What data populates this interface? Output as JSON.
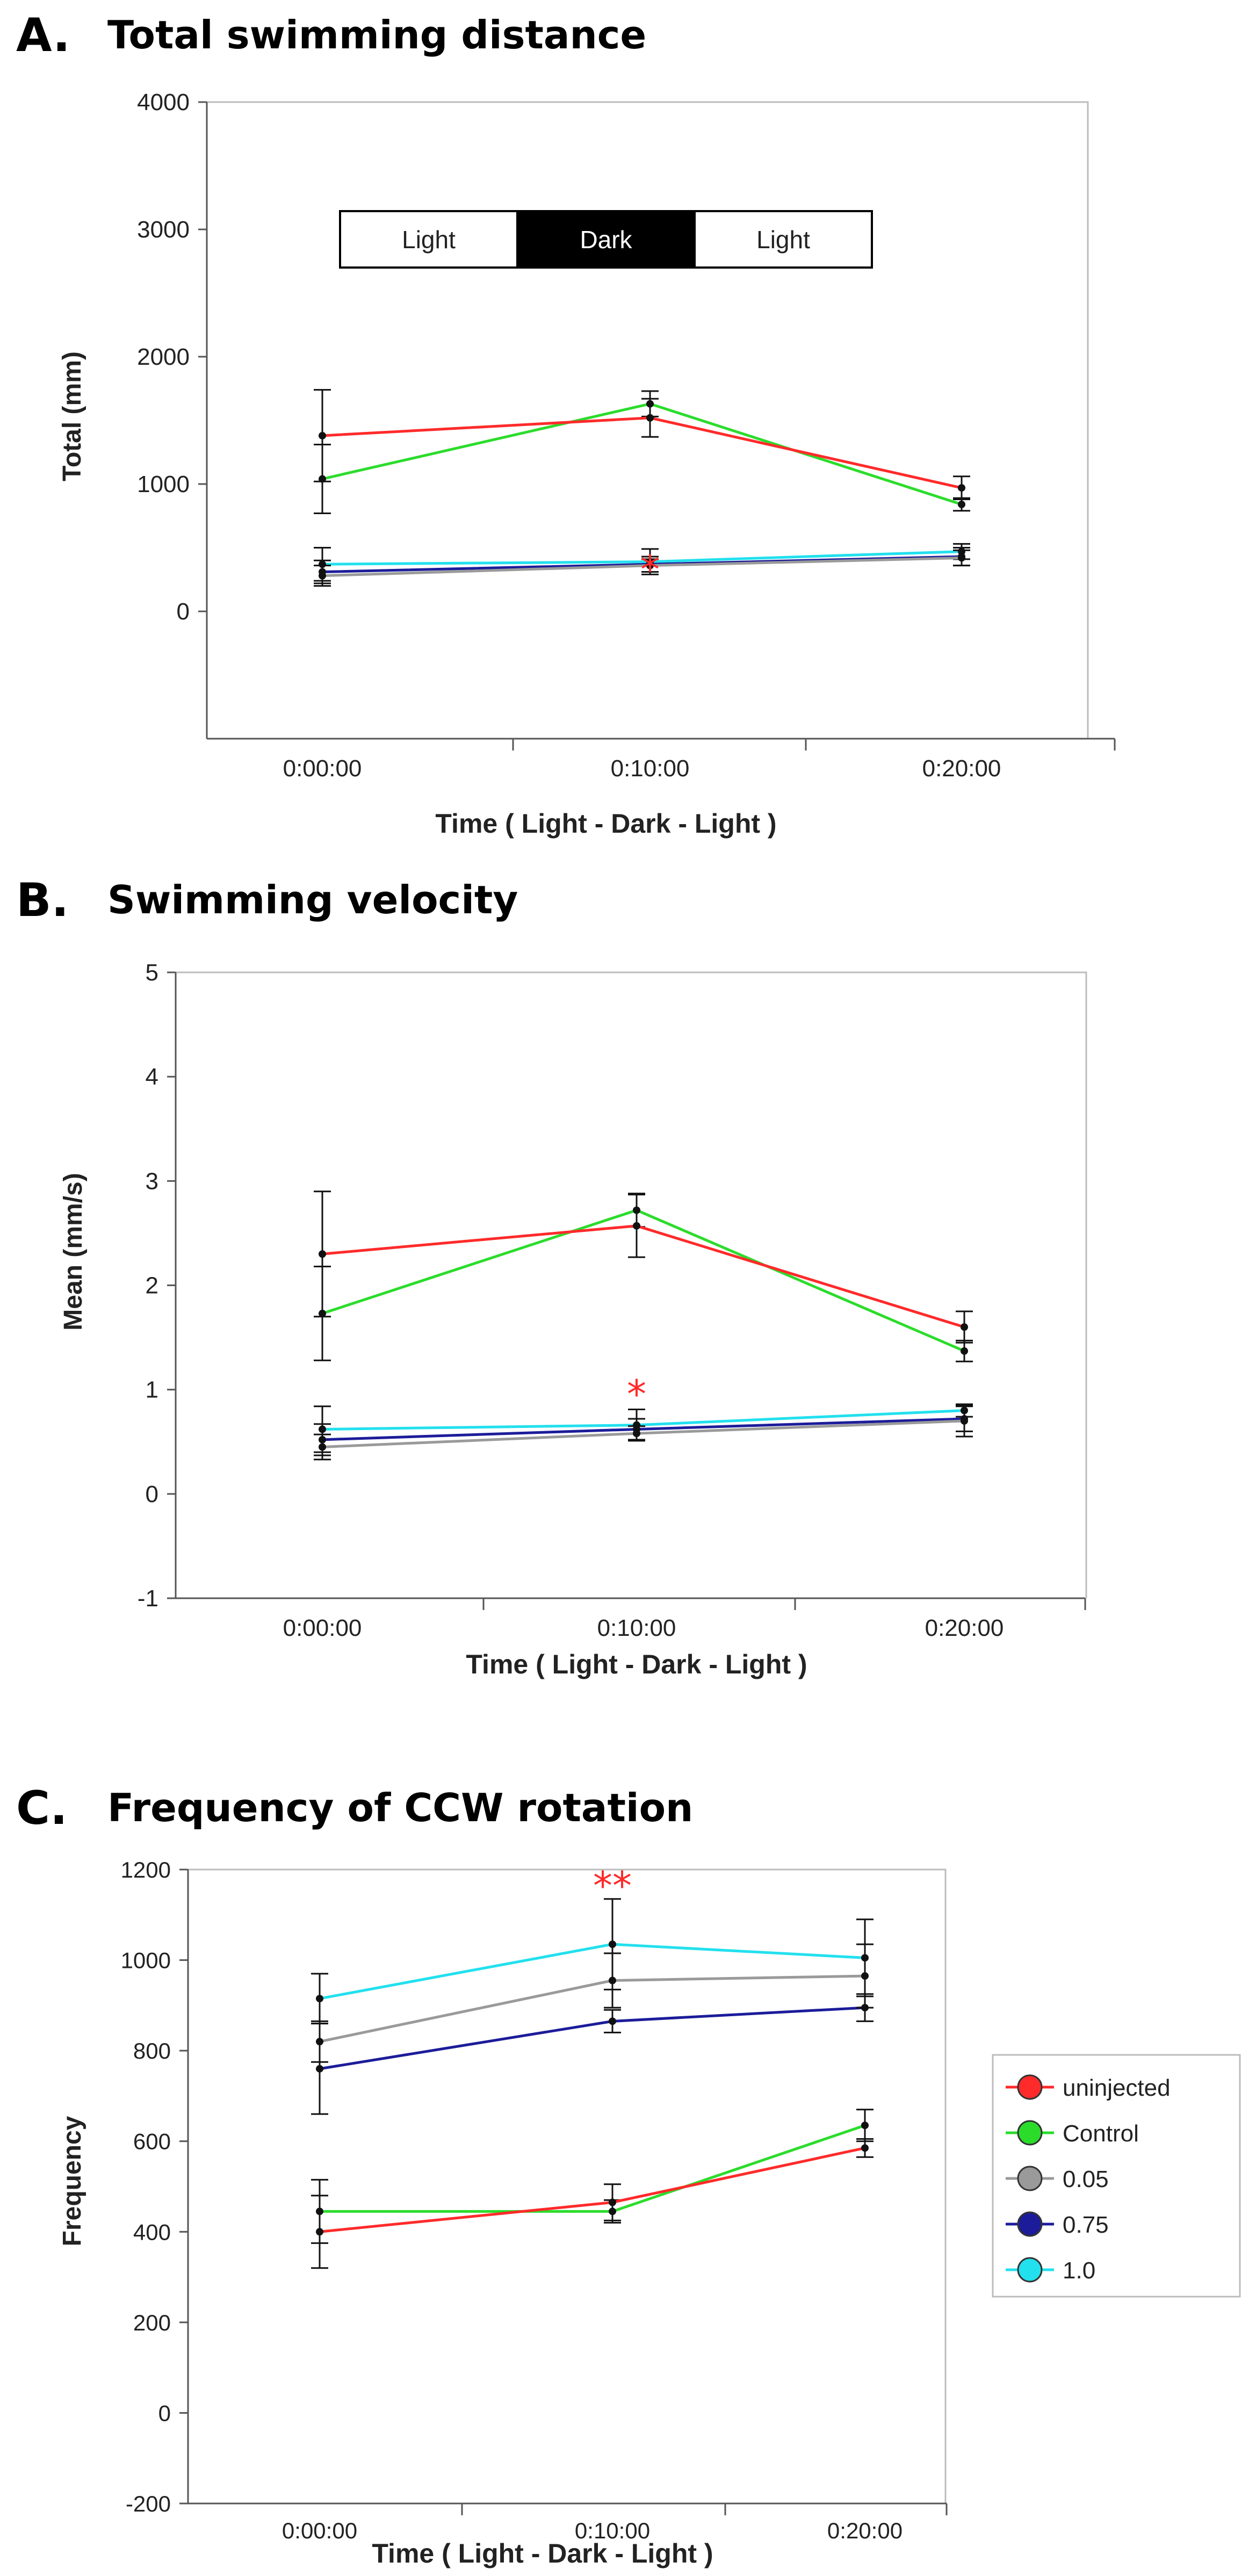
{
  "figure": {
    "panels": [
      {
        "letter": "A.",
        "title": "Total swimming distance"
      },
      {
        "letter": "B.",
        "title": "Swimming velocity"
      },
      {
        "letter": "C.",
        "title": "Frequency of CCW rotation"
      }
    ]
  },
  "legend": {
    "items": [
      {
        "label": "uninjected",
        "color": "#ff2a2a"
      },
      {
        "label": "Control",
        "color": "#2bdc2b"
      },
      {
        "label": "0.05",
        "color": "#9a9a9a"
      },
      {
        "label": "0.75",
        "color": "#1c1c9a"
      },
      {
        "label": "1.0",
        "color": "#22e0ee"
      }
    ]
  },
  "chart_data": [
    {
      "type": "line",
      "title": "Total swimming distance",
      "xlabel": "Time ( Light - Dark - Light )",
      "ylabel": "Total (mm)",
      "categories": [
        "0:00:00",
        "0:10:00",
        "0:20:00"
      ],
      "ylim": [
        -1000,
        4000
      ],
      "yticks": [
        0,
        1000,
        2000,
        3000,
        4000
      ],
      "annotation": "*",
      "light_dark_bar": [
        "Light",
        "Dark",
        "Light"
      ],
      "series": [
        {
          "name": "uninjected",
          "values": [
            1380,
            1520,
            970
          ],
          "errors": [
            360,
            150,
            90
          ]
        },
        {
          "name": "Control",
          "values": [
            1040,
            1630,
            840
          ],
          "errors": [
            270,
            100,
            50
          ]
        },
        {
          "name": "0.05",
          "values": [
            280,
            360,
            420
          ],
          "errors": [
            80,
            50,
            60
          ]
        },
        {
          "name": "0.75",
          "values": [
            310,
            370,
            430
          ],
          "errors": [
            90,
            60,
            70
          ]
        },
        {
          "name": "1.0",
          "values": [
            370,
            390,
            470
          ],
          "errors": [
            130,
            100,
            60
          ]
        }
      ]
    },
    {
      "type": "line",
      "title": "Swimming velocity",
      "xlabel": "Time ( Light - Dark - Light )",
      "ylabel": "Mean (mm/s)",
      "categories": [
        "0:00:00",
        "0:10:00",
        "0:20:00"
      ],
      "ylim": [
        -1,
        5
      ],
      "yticks": [
        -1,
        0,
        1,
        2,
        3,
        4,
        5
      ],
      "annotation": "*",
      "series": [
        {
          "name": "uninjected",
          "values": [
            2.3,
            2.57,
            1.6
          ],
          "errors": [
            0.6,
            0.3,
            0.15
          ]
        },
        {
          "name": "Control",
          "values": [
            1.73,
            2.72,
            1.37
          ],
          "errors": [
            0.45,
            0.16,
            0.1
          ]
        },
        {
          "name": "0.05",
          "values": [
            0.45,
            0.58,
            0.7
          ],
          "errors": [
            0.12,
            0.07,
            0.15
          ]
        },
        {
          "name": "0.75",
          "values": [
            0.52,
            0.62,
            0.72
          ],
          "errors": [
            0.15,
            0.1,
            0.12
          ]
        },
        {
          "name": "1.0",
          "values": [
            0.62,
            0.66,
            0.8
          ],
          "errors": [
            0.22,
            0.15,
            0.06
          ]
        }
      ]
    },
    {
      "type": "line",
      "title": "Frequency of CCW rotation",
      "xlabel": "Time ( Light - Dark - Light )",
      "ylabel": "Frequency",
      "categories": [
        "0:00:00",
        "0:10:00",
        "0:20:00"
      ],
      "ylim": [
        -200,
        1200
      ],
      "yticks": [
        -200,
        0,
        200,
        400,
        600,
        800,
        1000,
        1200
      ],
      "annotation": "**",
      "series": [
        {
          "name": "uninjected",
          "values": [
            400,
            465,
            585
          ],
          "errors": [
            80,
            40,
            20
          ]
        },
        {
          "name": "Control",
          "values": [
            445,
            445,
            635
          ],
          "errors": [
            70,
            25,
            35
          ]
        },
        {
          "name": "0.05",
          "values": [
            820,
            955,
            965
          ],
          "errors": [
            45,
            60,
            70
          ]
        },
        {
          "name": "0.75",
          "values": [
            760,
            865,
            895
          ],
          "errors": [
            100,
            25,
            30
          ]
        },
        {
          "name": "1.0",
          "values": [
            915,
            1035,
            1005
          ],
          "errors": [
            55,
            100,
            85
          ]
        }
      ]
    }
  ]
}
